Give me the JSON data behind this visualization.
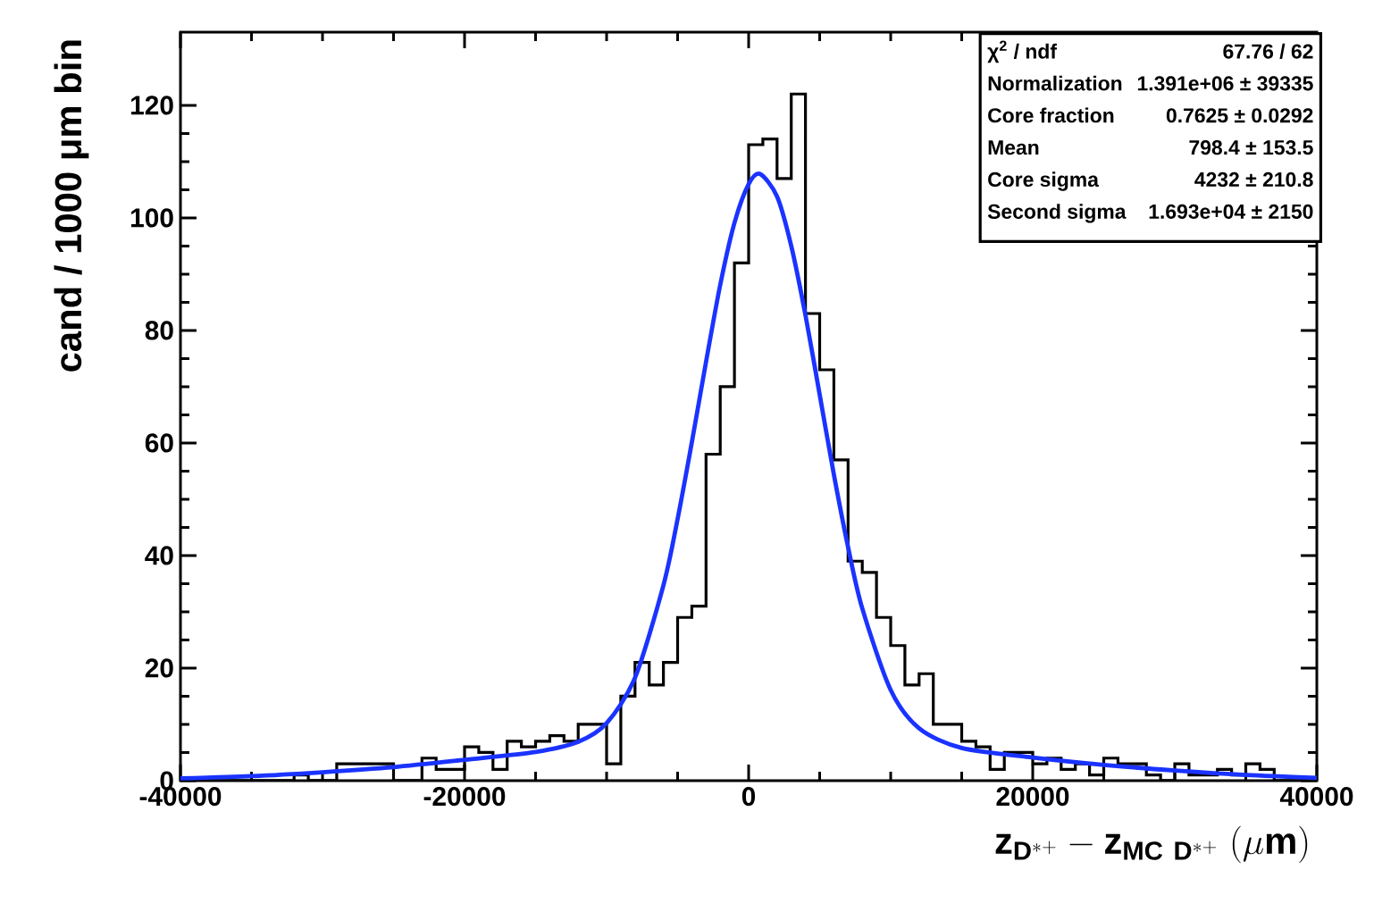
{
  "chart_data": {
    "type": "histogram",
    "xlabel": "\\mathbf{z_{D^{*+}} - z_{MC\\ D^{*+}}\\ (\\mu m)}",
    "ylabel": "cand / 1000 μm bin",
    "xlim": [
      -40000,
      40000
    ],
    "ylim": [
      0,
      133
    ],
    "xticks": [
      -40000,
      -20000,
      0,
      20000,
      40000
    ],
    "yticks": [
      0,
      20,
      40,
      60,
      80,
      100,
      120
    ],
    "series": [
      {
        "color": "#000000",
        "bins": [
          -40000,
          -39000,
          -38000,
          -37000,
          -36000,
          -35000,
          -34000,
          -33000,
          -32000,
          -31000,
          -30000,
          -29000,
          -28000,
          -27000,
          -26000,
          -25000,
          -24000,
          -23000,
          -22000,
          -21000,
          -20000,
          -19000,
          -18000,
          -17000,
          -16000,
          -15000,
          -14000,
          -13000,
          -12000,
          -11000,
          -10000,
          -9000,
          -8000,
          -7000,
          -6000,
          -5000,
          -4000,
          -3000,
          -2000,
          -1000,
          0,
          1000,
          2000,
          3000,
          4000,
          5000,
          6000,
          7000,
          8000,
          9000,
          10000,
          11000,
          12000,
          13000,
          14000,
          15000,
          16000,
          17000,
          18000,
          19000,
          20000,
          21000,
          22000,
          23000,
          24000,
          25000,
          26000,
          27000,
          28000,
          29000,
          30000,
          31000,
          32000,
          33000,
          34000,
          35000,
          36000,
          37000,
          38000,
          39000,
          40000
        ],
        "values": [
          0,
          0,
          0,
          0,
          0,
          0,
          0,
          0,
          1,
          0,
          0,
          3,
          3,
          3,
          3,
          0,
          0,
          4,
          2,
          2,
          6,
          5,
          2,
          7,
          6,
          7,
          8,
          7,
          10,
          10,
          3,
          15,
          21,
          17,
          21,
          29,
          31,
          58,
          70,
          92,
          113,
          114,
          107,
          122,
          83,
          73,
          57,
          39,
          37,
          29,
          24,
          17,
          19,
          10,
          10,
          7,
          6,
          2,
          5,
          5,
          3,
          4,
          2,
          3,
          1,
          4,
          3,
          3,
          1,
          0,
          3,
          1,
          1,
          2,
          1,
          3,
          2,
          0,
          0,
          0
        ]
      },
      {
        "type": "line",
        "color": "#1a33ff",
        "x": [
          -40000,
          -35000,
          -30000,
          -25000,
          -20000,
          -15000,
          -12000,
          -10000,
          -8000,
          -6000,
          -5000,
          -4000,
          -3000,
          -2000,
          -1000,
          0,
          798,
          2000,
          3000,
          4000,
          5000,
          6000,
          7000,
          8000,
          10000,
          12000,
          15000,
          20000,
          25000,
          30000,
          35000,
          40000
        ],
        "values": [
          0.4,
          0.8,
          1.5,
          2.4,
          3.7,
          5.1,
          6.9,
          10.2,
          18.3,
          34.7,
          46.5,
          60.1,
          74.4,
          88.1,
          99.1,
          106.0,
          107.8,
          103.8,
          95.0,
          82.7,
          68.6,
          54.4,
          41.5,
          30.6,
          16.1,
          9.3,
          5.8,
          4.1,
          2.8,
          1.8,
          1.0,
          0.5
        ]
      }
    ],
    "annotations": [
      "χ$^{2}$ / ndf",
      "67.76 / 62",
      "Normalization",
      "1.391e+06 ± 39335",
      "Core fraction",
      "0.7625 ± 0.0292",
      "Mean",
      "798.4 ± 153.5",
      "Core sigma",
      "4232 ± 210.8",
      "Second sigma",
      "1.693e+04 ± 2150"
    ]
  }
}
